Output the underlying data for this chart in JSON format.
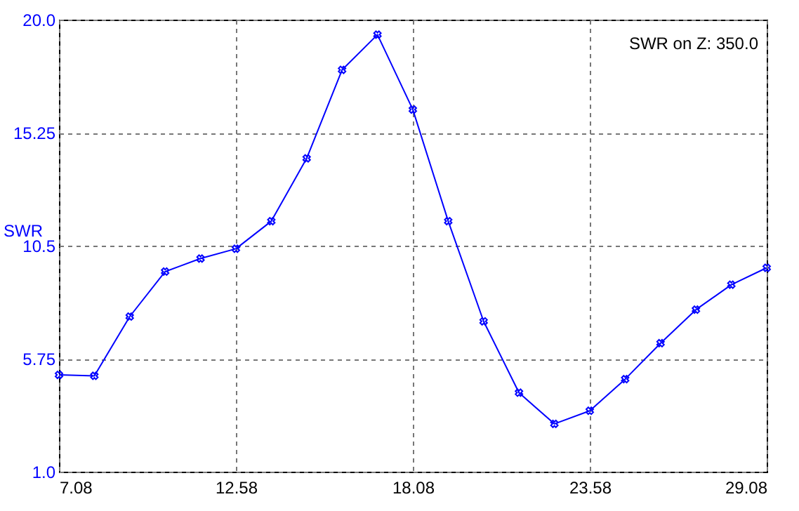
{
  "chart_data": {
    "type": "line",
    "ylabel": "SWR",
    "annotations": [
      "SWR on Z: 350.0"
    ],
    "x": [
      7.08,
      8.18,
      9.28,
      10.38,
      11.48,
      12.58,
      13.68,
      14.78,
      15.88,
      16.98,
      18.08,
      19.18,
      20.28,
      21.38,
      22.48,
      23.58,
      24.68,
      25.78,
      26.88,
      27.98,
      29.08
    ],
    "series": [
      {
        "color": "#0000ff",
        "values": [
          5.07,
          5.03,
          7.52,
          9.41,
          9.96,
          10.37,
          11.53,
          14.17,
          17.89,
          19.37,
          16.22,
          11.53,
          7.32,
          4.32,
          3.01,
          3.56,
          4.89,
          6.4,
          7.81,
          8.86,
          9.57
        ]
      }
    ],
    "xlim": [
      7.08,
      29.08
    ],
    "xticks": [
      7.08,
      12.58,
      18.08,
      23.58,
      29.08
    ],
    "ylim": [
      1.0,
      20.0
    ],
    "yticks": [
      {
        "value": 1.0,
        "label": "1.0"
      },
      5.75,
      10.5,
      15.25,
      {
        "value": 20.0,
        "label": "20.0"
      }
    ],
    "grid": true,
    "marker": "cross",
    "line_style": "solid"
  }
}
